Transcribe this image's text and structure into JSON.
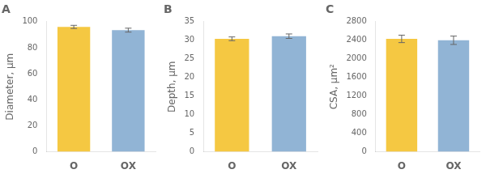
{
  "chart_data": [
    {
      "type": "bar",
      "title": "A",
      "ylabel": "Diameter, μm",
      "categories": [
        "O",
        "OX"
      ],
      "values": [
        96.0,
        93.5
      ],
      "errors": [
        1.2,
        1.5
      ],
      "colors": [
        "#F5C842",
        "#91B4D5"
      ],
      "ylim": [
        0,
        100
      ],
      "yticks": [
        0,
        20,
        40,
        60,
        80,
        100
      ],
      "grid": false
    },
    {
      "type": "bar",
      "title": "B",
      "ylabel": "Depth, μm",
      "categories": [
        "O",
        "OX"
      ],
      "values": [
        30.4,
        31.1
      ],
      "errors": [
        0.5,
        0.6
      ],
      "colors": [
        "#F5C842",
        "#91B4D5"
      ],
      "ylim": [
        0,
        35
      ],
      "yticks": [
        0,
        5,
        10,
        15,
        20,
        25,
        30,
        35
      ],
      "grid": false
    },
    {
      "type": "bar",
      "title": "C",
      "ylabel": "CSA, μm²",
      "categories": [
        "O",
        "OX"
      ],
      "values": [
        2430,
        2400
      ],
      "errors": [
        80,
        90
      ],
      "colors": [
        "#F5C842",
        "#91B4D5"
      ],
      "ylim": [
        0,
        2800
      ],
      "yticks": [
        0,
        400,
        800,
        1200,
        1600,
        2000,
        2400,
        2800
      ],
      "grid": false
    }
  ]
}
